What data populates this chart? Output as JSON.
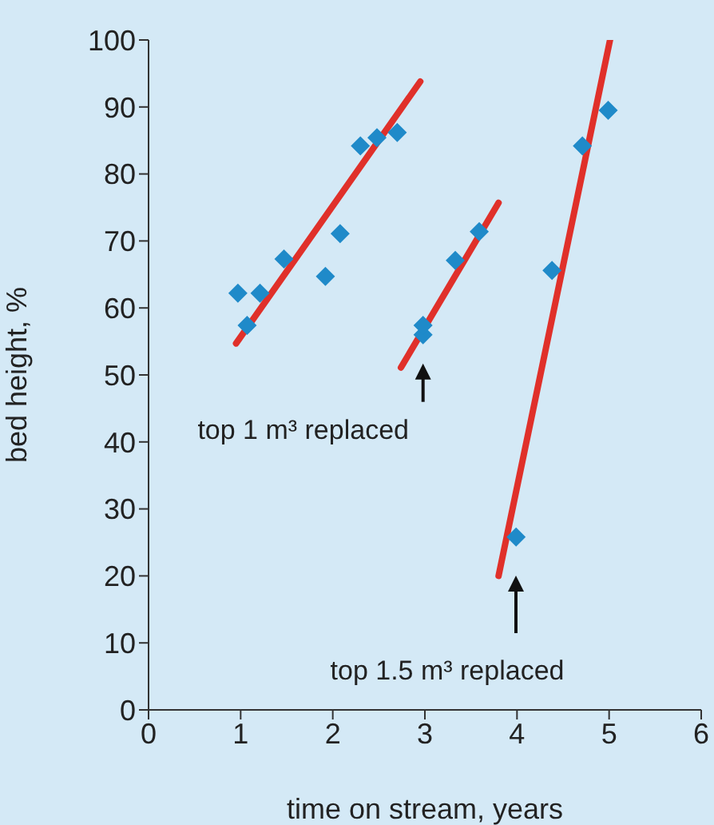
{
  "chart_data": {
    "type": "scatter",
    "xlabel": "time on stream, years",
    "ylabel": "bed height, %",
    "xlim": [
      0,
      6
    ],
    "xticks": [
      0,
      1,
      2,
      3,
      4,
      5,
      6
    ],
    "ylim": [
      0,
      100
    ],
    "yticks": [
      0,
      10,
      20,
      30,
      40,
      50,
      60,
      70,
      80,
      90,
      100
    ],
    "grid": false,
    "legend": false,
    "marker": "diamond",
    "series": [
      {
        "color": "#1f8ac9",
        "x": [
          0.97,
          1.07,
          1.21,
          1.47,
          1.92,
          2.08,
          2.3,
          2.48,
          2.7,
          2.98,
          2.98,
          3.33,
          3.59,
          3.99,
          4.38,
          4.71,
          4.99
        ],
        "values": [
          62.2,
          57.4,
          62.2,
          67.3,
          64.7,
          71.1,
          84.2,
          85.4,
          86.2,
          56,
          57.4,
          67.1,
          71.4,
          25.8,
          65.6,
          84.2,
          89.5
        ]
      },
      {
        "type": "line",
        "color": "#e0302a",
        "marker": "none",
        "x": [
          0.95,
          2.95
        ],
        "values": [
          54.7,
          93.8
        ]
      },
      {
        "type": "line",
        "color": "#e0302a",
        "marker": "none",
        "x": [
          2.74,
          3.8
        ],
        "values": [
          51.1,
          75.7
        ]
      },
      {
        "type": "line",
        "color": "#e0302a",
        "marker": "none",
        "x": [
          3.8,
          5.01
        ],
        "values": [
          20,
          100
        ]
      }
    ],
    "annotations": [
      {
        "text": "top 1 m³ replaced",
        "x": 2.98,
        "y": 56
      },
      "top 1.5 m³ replaced"
    ]
  }
}
